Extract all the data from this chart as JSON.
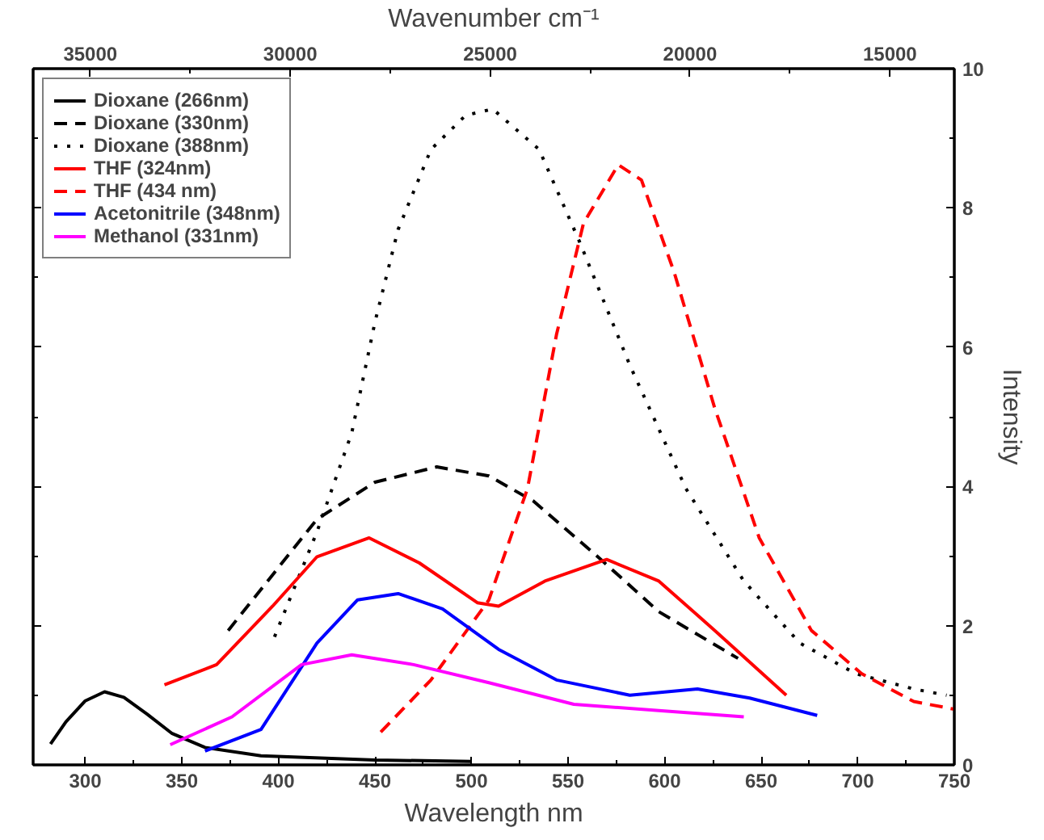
{
  "chart_data": {
    "type": "line",
    "xlabel": "Wavelength nm",
    "ylabel": "Intensity",
    "x2label": "Wavenumber cm⁻¹",
    "xlim": [
      273,
      750
    ],
    "xticks": [
      300,
      350,
      400,
      450,
      500,
      550,
      600,
      650,
      700,
      750
    ],
    "x2lim": [
      36430,
      13390
    ],
    "x2ticks": [
      35000,
      30000,
      25000,
      20000,
      15000
    ],
    "ylim": [
      0,
      10
    ],
    "yticks": [
      0,
      2,
      4,
      6,
      8,
      10
    ],
    "grid": false,
    "legend": "top left",
    "marker": "none",
    "series": [
      {
        "name": "Dioxane (266nm)",
        "color": "#000000",
        "line_style": "solid",
        "x": [
          282,
          290,
          300,
          310,
          320,
          332,
          345,
          362,
          391,
          450,
          500
        ],
        "values": [
          0.3,
          0.62,
          0.92,
          1.05,
          0.97,
          0.73,
          0.45,
          0.25,
          0.13,
          0.07,
          0.05
        ]
      },
      {
        "name": "Dioxane (330nm)",
        "color": "#000000",
        "line_style": "dashed",
        "x": [
          374,
          420,
          450,
          482,
          509,
          532,
          567,
          597,
          638
        ],
        "values": [
          1.93,
          3.53,
          4.06,
          4.28,
          4.15,
          3.79,
          2.95,
          2.2,
          1.53
        ]
      },
      {
        "name": "Dioxane (388nm)",
        "color": "#000000",
        "line_style": "dotted",
        "x": [
          398,
          420,
          438,
          450,
          462,
          479,
          497,
          511,
          535,
          556,
          582,
          611,
          641,
          670,
          699,
          729,
          746
        ],
        "values": [
          1.84,
          3.35,
          4.77,
          6.36,
          7.69,
          8.84,
          9.33,
          9.42,
          8.84,
          7.51,
          5.74,
          3.97,
          2.64,
          1.75,
          1.31,
          1.09,
          1.0
        ]
      },
      {
        "name": "THF (324nm)",
        "color": "#ff0000",
        "line_style": "solid",
        "x": [
          341,
          368,
          397,
          420,
          447,
          473,
          503,
          514,
          538,
          570,
          597,
          626,
          663
        ],
        "values": [
          1.15,
          1.44,
          2.28,
          2.99,
          3.26,
          2.9,
          2.33,
          2.28,
          2.64,
          2.95,
          2.64,
          1.93,
          1.0
        ]
      },
      {
        "name": "THF (434 nm)",
        "color": "#ff0000",
        "line_style": "dashed",
        "x": [
          453,
          479,
          509,
          529,
          544,
          558,
          576,
          588,
          605,
          626,
          649,
          676,
          702,
          729,
          750
        ],
        "values": [
          0.47,
          1.22,
          2.37,
          3.97,
          6.18,
          7.78,
          8.62,
          8.4,
          7.07,
          5.12,
          3.26,
          1.93,
          1.31,
          0.91,
          0.8
        ]
      },
      {
        "name": "Acetonitrile (348nm)",
        "color": "#0000ff",
        "line_style": "solid",
        "x": [
          362,
          391,
          420,
          441,
          462,
          485,
          514,
          544,
          582,
          617,
          644,
          679
        ],
        "values": [
          0.2,
          0.51,
          1.75,
          2.37,
          2.46,
          2.24,
          1.66,
          1.22,
          1.0,
          1.09,
          0.96,
          0.71
        ]
      },
      {
        "name": "Methanol (331nm)",
        "color": "#ff00ff",
        "line_style": "solid",
        "x": [
          344,
          376,
          412,
          438,
          470,
          509,
          553,
          597,
          641
        ],
        "values": [
          0.29,
          0.69,
          1.44,
          1.58,
          1.44,
          1.18,
          0.87,
          0.78,
          0.69
        ]
      }
    ]
  }
}
